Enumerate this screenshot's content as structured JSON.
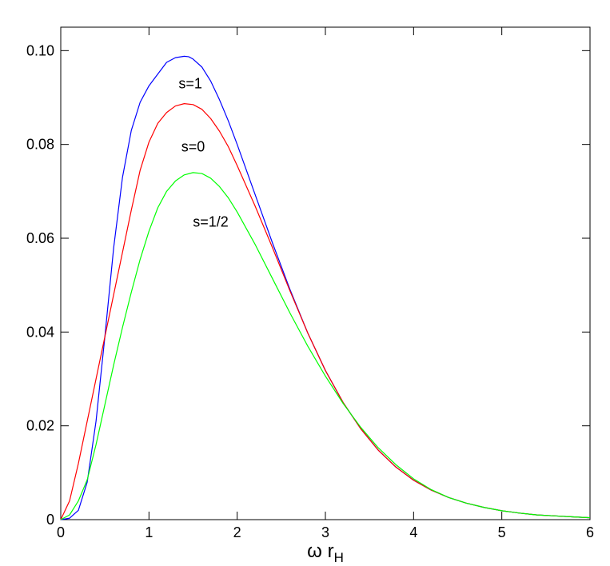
{
  "chart_data": {
    "type": "line",
    "title": "",
    "xlabel": "ω r",
    "xlabel_sub": "H",
    "ylabel": "",
    "xlim": [
      0,
      6
    ],
    "ylim": [
      0,
      0.105
    ],
    "x_ticks": [
      0,
      1,
      2,
      3,
      4,
      5,
      6
    ],
    "x_tick_labels": [
      "0",
      "1",
      "2",
      "3",
      "4",
      "5",
      "6"
    ],
    "y_ticks": [
      0,
      0.02,
      0.04,
      0.06,
      0.08,
      0.1
    ],
    "y_tick_labels": [
      "0",
      "0.02",
      "0.04",
      "0.06",
      "0.08",
      "0.10"
    ],
    "grid": false,
    "legend": "inline labels",
    "series": [
      {
        "name": "s=1",
        "color": "#0000ff",
        "label_at": [
          1.47,
          0.092
        ],
        "x": [
          0,
          0.1,
          0.2,
          0.3,
          0.4,
          0.5,
          0.6,
          0.7,
          0.8,
          0.9,
          1.0,
          1.1,
          1.2,
          1.3,
          1.4,
          1.45,
          1.5,
          1.6,
          1.7,
          1.8,
          1.9,
          2.0,
          2.2,
          2.4,
          2.6,
          2.8,
          3.0,
          3.2,
          3.4,
          3.6,
          3.8,
          4.0,
          4.2,
          4.4,
          4.6,
          4.8,
          5.0,
          5.2,
          5.4,
          5.6,
          5.8,
          6.0
        ],
        "y": [
          0,
          0.0003,
          0.002,
          0.008,
          0.021,
          0.039,
          0.058,
          0.073,
          0.083,
          0.089,
          0.0925,
          0.095,
          0.0975,
          0.0985,
          0.0988,
          0.0987,
          0.0982,
          0.0965,
          0.0935,
          0.0895,
          0.085,
          0.08,
          0.0695,
          0.059,
          0.049,
          0.0398,
          0.0318,
          0.025,
          0.0194,
          0.0148,
          0.0112,
          0.0084,
          0.0063,
          0.0047,
          0.0035,
          0.0026,
          0.0019,
          0.0014,
          0.001,
          0.0008,
          0.0006,
          0.0004
        ]
      },
      {
        "name": "s=0",
        "color": "#ff0000",
        "label_at": [
          1.5,
          0.0785
        ],
        "x": [
          0,
          0.1,
          0.2,
          0.3,
          0.4,
          0.5,
          0.6,
          0.7,
          0.8,
          0.9,
          1.0,
          1.1,
          1.2,
          1.3,
          1.4,
          1.5,
          1.6,
          1.7,
          1.8,
          1.9,
          2.0,
          2.2,
          2.4,
          2.6,
          2.8,
          3.0,
          3.2,
          3.4,
          3.6,
          3.8,
          4.0,
          4.2,
          4.4,
          4.6,
          4.8,
          5.0,
          5.2,
          5.4,
          5.6,
          5.8,
          6.0
        ],
        "y": [
          0,
          0.004,
          0.012,
          0.021,
          0.03,
          0.039,
          0.048,
          0.057,
          0.066,
          0.0745,
          0.0805,
          0.0845,
          0.0868,
          0.0882,
          0.0887,
          0.0885,
          0.0875,
          0.0855,
          0.0828,
          0.0795,
          0.0755,
          0.067,
          0.058,
          0.0487,
          0.0398,
          0.0318,
          0.025,
          0.0194,
          0.0148,
          0.0112,
          0.0084,
          0.0063,
          0.0047,
          0.0035,
          0.0026,
          0.0019,
          0.0014,
          0.001,
          0.0008,
          0.0006,
          0.0004
        ]
      },
      {
        "name": "s=1/2",
        "color": "#00ff00",
        "label_at": [
          1.7,
          0.0625
        ],
        "x": [
          0,
          0.1,
          0.2,
          0.3,
          0.4,
          0.5,
          0.6,
          0.7,
          0.8,
          0.9,
          1.0,
          1.1,
          1.2,
          1.3,
          1.4,
          1.5,
          1.6,
          1.7,
          1.8,
          1.9,
          2.0,
          2.2,
          2.4,
          2.6,
          2.8,
          3.0,
          3.2,
          3.4,
          3.6,
          3.8,
          4.0,
          4.2,
          4.4,
          4.6,
          4.8,
          5.0,
          5.2,
          5.4,
          5.6,
          5.8,
          6.0
        ],
        "y": [
          0,
          0.001,
          0.004,
          0.0085,
          0.016,
          0.0245,
          0.033,
          0.041,
          0.0485,
          0.0555,
          0.0615,
          0.0665,
          0.07,
          0.0722,
          0.0735,
          0.074,
          0.0738,
          0.0728,
          0.071,
          0.0686,
          0.0656,
          0.0588,
          0.0514,
          0.044,
          0.037,
          0.0306,
          0.0248,
          0.0197,
          0.0153,
          0.0117,
          0.0087,
          0.0064,
          0.0047,
          0.0035,
          0.0026,
          0.0019,
          0.0014,
          0.001,
          0.0008,
          0.0006,
          0.0004
        ]
      }
    ]
  }
}
